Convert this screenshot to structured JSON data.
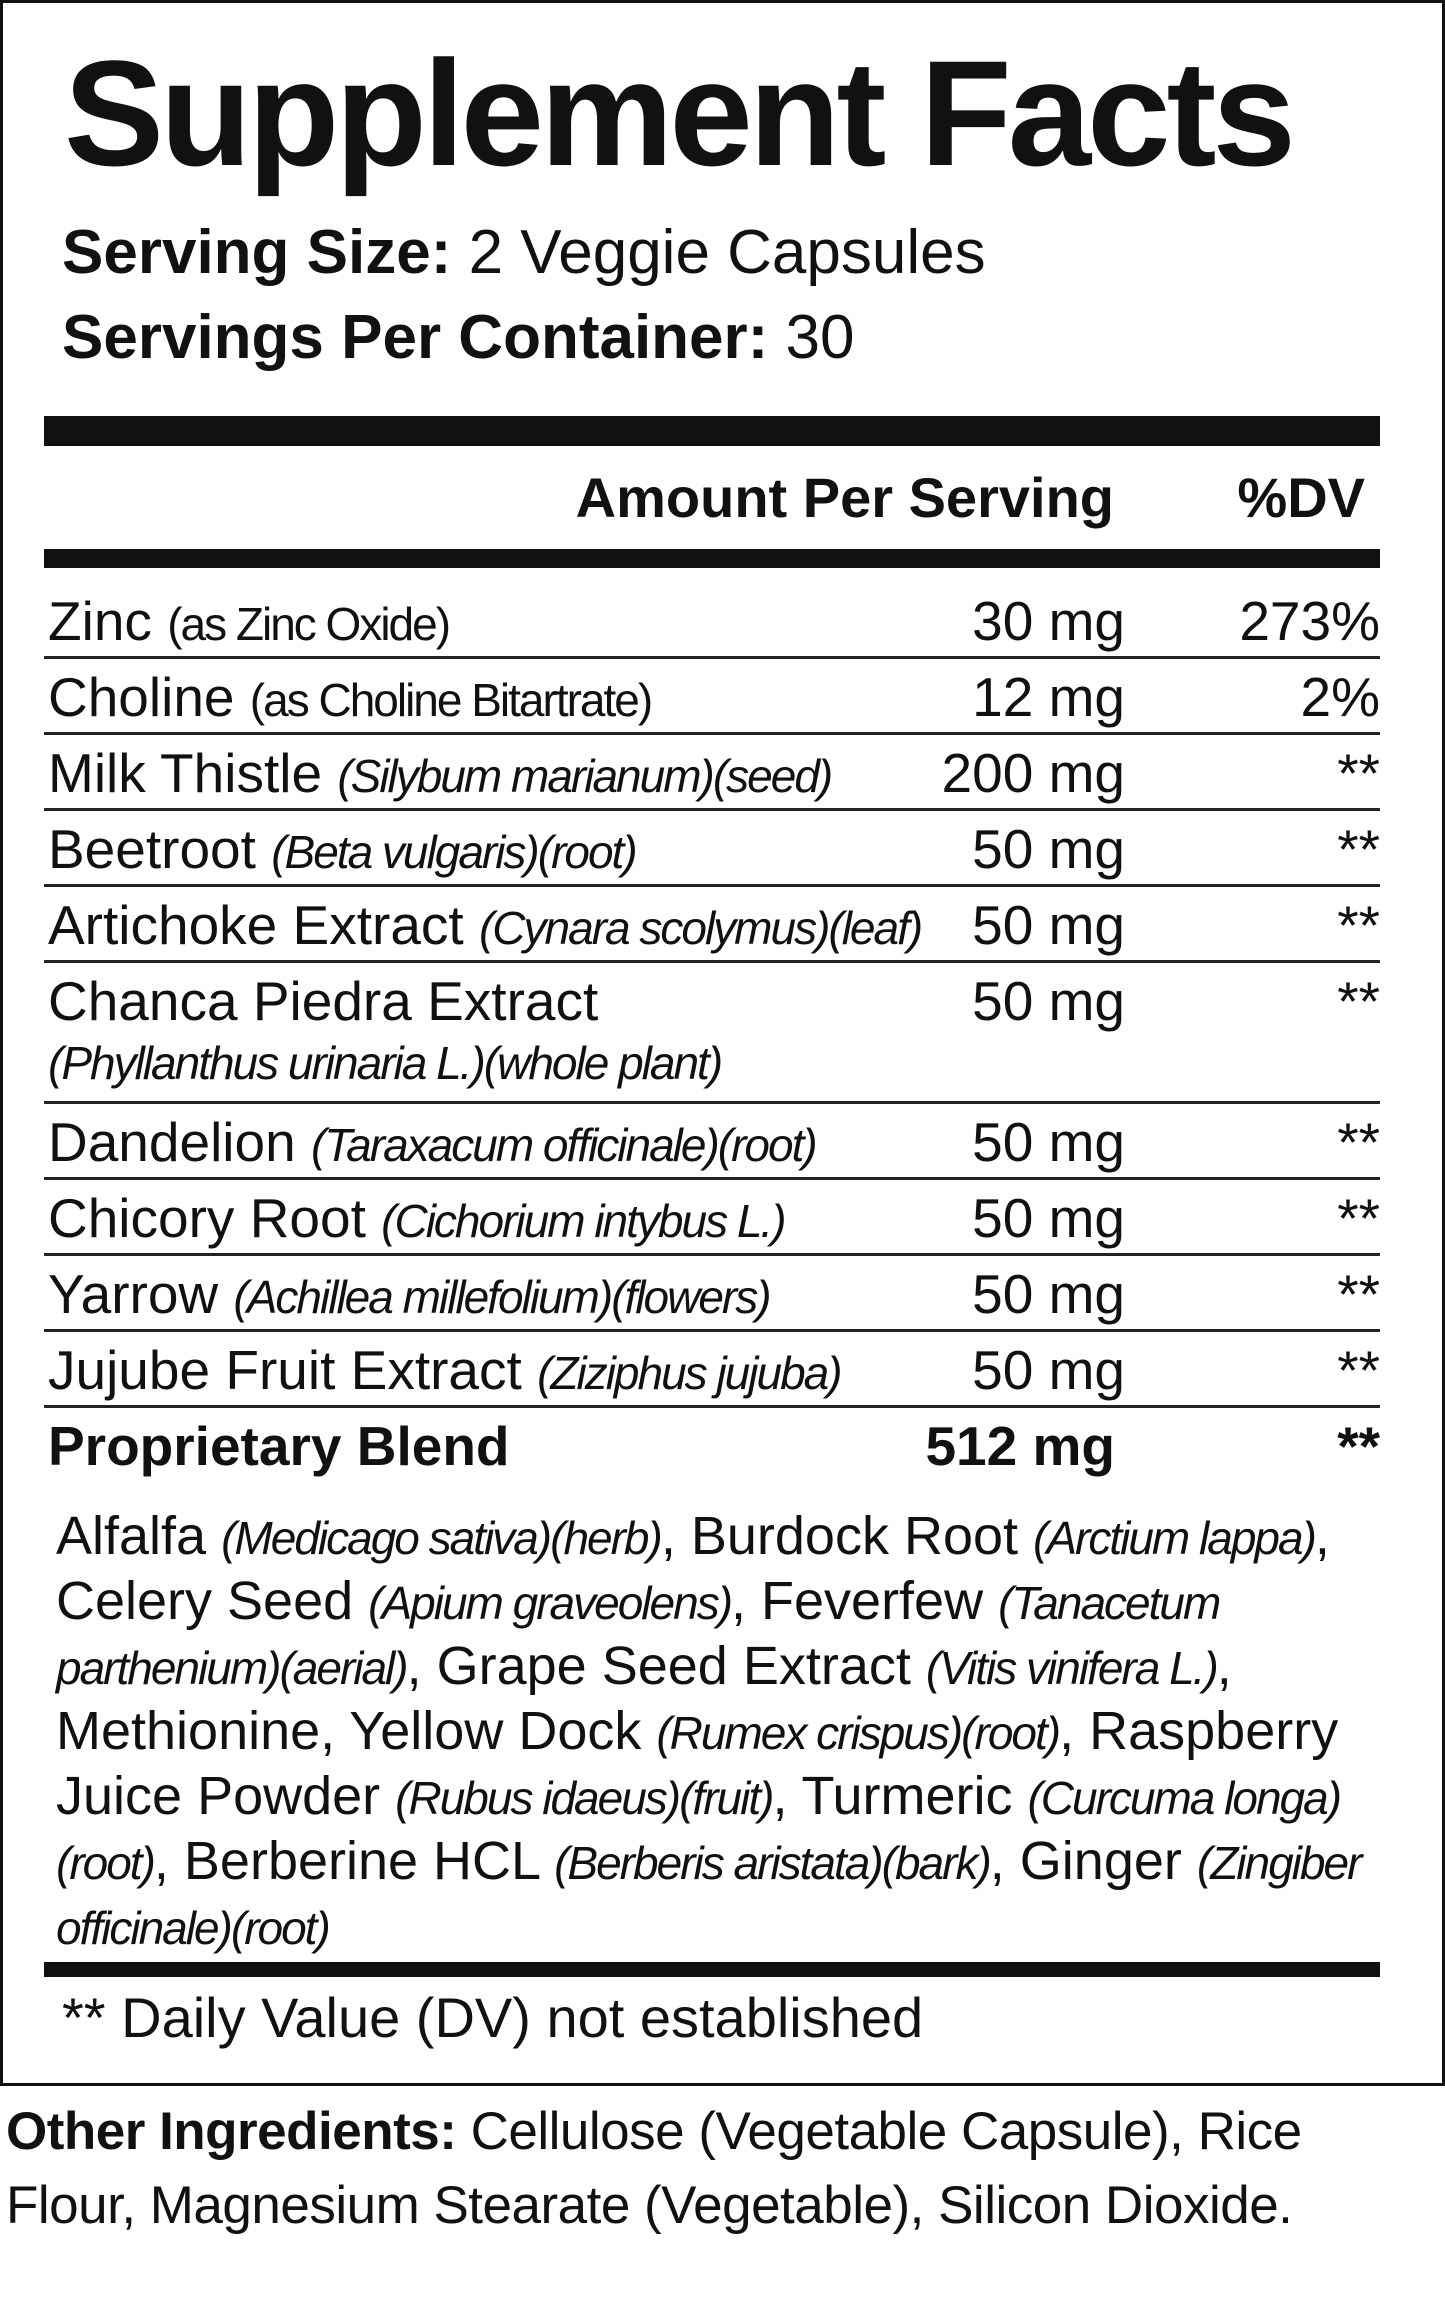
{
  "title": "Supplement Facts",
  "serving_size": {
    "label": "Serving Size:",
    "value": "2 Veggie Capsules"
  },
  "servings_per_container": {
    "label": "Servings Per Container:",
    "value": "30"
  },
  "header": {
    "amount": "Amount Per Serving",
    "dv": "%DV"
  },
  "rows": [
    {
      "name": "Zinc",
      "source": "(as Zinc Oxide)",
      "italic": false,
      "amount": "30 mg",
      "dv": "273%"
    },
    {
      "name": "Choline",
      "source": "(as Choline Bitartrate)",
      "italic": false,
      "amount": "12 mg",
      "dv": "2%"
    },
    {
      "name": "Milk Thistle",
      "source": "(Silybum marianum)(seed)",
      "italic": true,
      "amount": "200 mg",
      "dv": "**"
    },
    {
      "name": "Beetroot",
      "source": "(Beta vulgaris)(root)",
      "italic": true,
      "amount": "50 mg",
      "dv": "**"
    },
    {
      "name": "Artichoke Extract",
      "source": "(Cynara scolymus)(leaf)",
      "italic": true,
      "amount": "50 mg",
      "dv": "**"
    },
    {
      "name": "Chanca Piedra Extract",
      "source": "(Phyllanthus urinaria L.)(whole plant)",
      "italic": true,
      "wrap": true,
      "amount": "50 mg",
      "dv": "**"
    },
    {
      "name": "Dandelion",
      "source": "(Taraxacum officinale)(root)",
      "italic": true,
      "amount": "50 mg",
      "dv": "**"
    },
    {
      "name": "Chicory Root",
      "source": "(Cichorium intybus L.)",
      "italic": true,
      "amount": "50 mg",
      "dv": "**"
    },
    {
      "name": "Yarrow",
      "source": "(Achillea millefolium)(flowers)",
      "italic": true,
      "amount": "50 mg",
      "dv": "**"
    },
    {
      "name": "Jujube Fruit Extract",
      "source": "(Ziziphus jujuba)",
      "italic": true,
      "amount": "50 mg",
      "dv": "**"
    }
  ],
  "blend": {
    "name": "Proprietary Blend",
    "amount": "512 mg",
    "dv": "**",
    "ingredients": [
      {
        "text": "Alfalfa "
      },
      {
        "text": "(Medicago sativa)(herb)",
        "italic": true
      },
      {
        "text": ", Burdock Root "
      },
      {
        "text": "(Arctium lappa)",
        "italic": true
      },
      {
        "text": ", Celery Seed "
      },
      {
        "text": "(Apium graveolens)",
        "italic": true
      },
      {
        "text": ", Feverfew "
      },
      {
        "text": "(Tanacetum parthenium)(aerial)",
        "italic": true
      },
      {
        "text": ", Grape Seed Extract "
      },
      {
        "text": "(Vitis vinifera L.)",
        "italic": true
      },
      {
        "text": ", Methionine, Yellow Dock "
      },
      {
        "text": "(Rumex crispus)(root)",
        "italic": true
      },
      {
        "text": ", Raspberry Juice Powder "
      },
      {
        "text": "(Rubus idaeus)(fruit)",
        "italic": true
      },
      {
        "text": ", Turmeric "
      },
      {
        "text": "(Curcuma longa)(root)",
        "italic": true
      },
      {
        "text": ", Berberine HCL "
      },
      {
        "text": "(Berberis aristata)(bark)",
        "italic": true
      },
      {
        "text": ", Ginger "
      },
      {
        "text": "(Zingiber officinale)(root)",
        "italic": true
      }
    ]
  },
  "footnote": "** Daily Value (DV) not established",
  "other_ingredients": {
    "label": "Other Ingredients:",
    "text": "Cellulose (Vegetable Capsule), Rice Flour, Magnesium Stearate (Vegetable), Silicon Dioxide."
  }
}
